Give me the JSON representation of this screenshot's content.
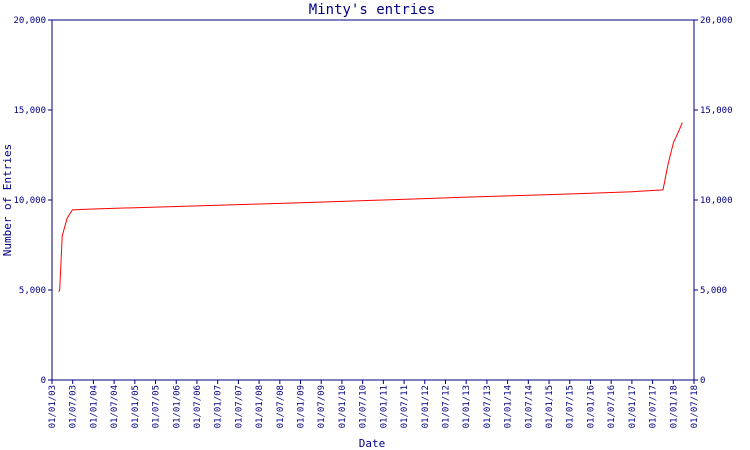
{
  "chart_data": {
    "type": "line",
    "title": "Minty's entries",
    "xlabel": "Date",
    "ylabel": "Number of Entries",
    "ylim": [
      0,
      20000
    ],
    "yticks": [
      0,
      5000,
      10000,
      15000,
      20000
    ],
    "ytick_labels": [
      "0",
      "5,000",
      "10,000",
      "15,000",
      "20,000"
    ],
    "xlim": [
      "2003-01-01",
      "2018-07-01"
    ],
    "xtick_labels": [
      "01/01/03",
      "01/07/03",
      "01/01/04",
      "01/07/04",
      "01/01/05",
      "01/07/05",
      "01/01/06",
      "01/07/06",
      "01/01/07",
      "01/07/07",
      "01/01/08",
      "01/07/08",
      "01/01/09",
      "01/07/09",
      "01/01/10",
      "01/07/10",
      "01/01/11",
      "01/07/11",
      "01/01/12",
      "01/07/12",
      "01/01/13",
      "01/07/13",
      "01/01/14",
      "01/07/14",
      "01/01/15",
      "01/07/15",
      "01/01/16",
      "01/07/16",
      "01/01/17",
      "01/07/17",
      "01/01/18",
      "01/07/18"
    ],
    "grid": false,
    "colors": {
      "line": "#ff0000",
      "axis": "#000080",
      "text": "#000080"
    },
    "series": [
      {
        "x": [
          "2003-03-01",
          "2003-03-10",
          "2003-04-01",
          "2003-05-15",
          "2003-07-01",
          "2004-01-01",
          "2005-01-01",
          "2006-01-01",
          "2007-01-01",
          "2008-01-01",
          "2009-01-01",
          "2010-01-01",
          "2011-01-01",
          "2012-01-01",
          "2013-01-01",
          "2014-01-01",
          "2015-01-01",
          "2016-01-01",
          "2017-01-01",
          "2017-10-01",
          "2017-11-15",
          "2018-01-01",
          "2018-02-15",
          "2018-03-20"
        ],
        "values": [
          4900,
          5000,
          8000,
          9000,
          9450,
          9500,
          9570,
          9640,
          9710,
          9780,
          9850,
          9920,
          10000,
          10080,
          10160,
          10230,
          10300,
          10380,
          10460,
          10560,
          12000,
          13200,
          13800,
          14300
        ]
      }
    ]
  }
}
